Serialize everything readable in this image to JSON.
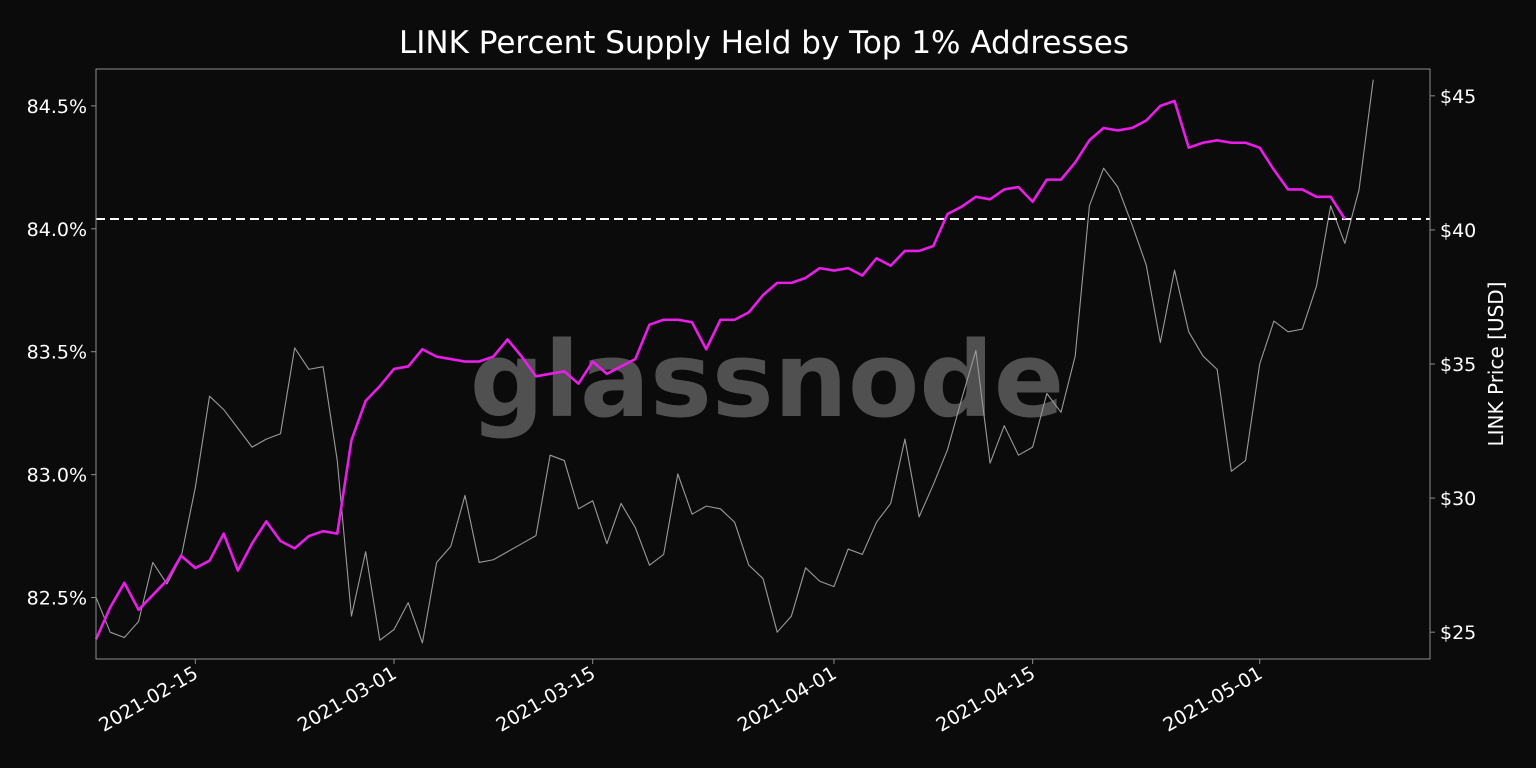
{
  "chart_data": {
    "type": "line",
    "title": "LINK Percent Supply Held by Top 1% Addresses",
    "watermark": "glassnode",
    "ylabel_left": "",
    "ylabel_right": "LINK Price [USD]",
    "xlim": [
      "2021-02-08",
      "2021-05-13"
    ],
    "ylim_left": [
      82.25,
      84.65
    ],
    "ylim_right": [
      24,
      46
    ],
    "x_ticks": [
      "2021-02-15",
      "2021-03-01",
      "2021-03-15",
      "2021-04-01",
      "2021-04-15",
      "2021-05-01"
    ],
    "y_ticks_left": [
      "82.5%",
      "83.0%",
      "83.5%",
      "84.0%",
      "84.5%"
    ],
    "y_tick_values_left": [
      82.5,
      83.0,
      83.5,
      84.0,
      84.5
    ],
    "y_ticks_right": [
      "$25",
      "$30",
      "$35",
      "$40",
      "$45"
    ],
    "y_tick_values_right": [
      25,
      30,
      35,
      40,
      45
    ],
    "reference_line": {
      "axis": "left",
      "value": 84.04,
      "style": "dashed",
      "color": "#ffffff"
    },
    "colors": {
      "supply": "#e81ee8",
      "price": "#9a9a9a",
      "background": "#0b0b0b",
      "frame": "#8c8c8c"
    },
    "start_date": "2021-02-08",
    "series": [
      {
        "name": "LINK Percent Supply Held by Top 1% Addresses",
        "axis": "left",
        "values": [
          82.33,
          82.46,
          82.56,
          82.45,
          82.51,
          82.57,
          82.67,
          82.62,
          82.65,
          82.76,
          82.61,
          82.72,
          82.81,
          82.73,
          82.7,
          82.75,
          82.77,
          82.76,
          83.14,
          83.3,
          83.36,
          83.43,
          83.44,
          83.51,
          83.48,
          83.47,
          83.46,
          83.46,
          83.48,
          83.55,
          83.48,
          83.4,
          83.41,
          83.42,
          83.37,
          83.46,
          83.41,
          83.44,
          83.47,
          83.61,
          83.63,
          83.63,
          83.62,
          83.51,
          83.63,
          83.63,
          83.66,
          83.73,
          83.78,
          83.78,
          83.8,
          83.84,
          83.83,
          83.84,
          83.81,
          83.88,
          83.85,
          83.91,
          83.91,
          83.93,
          84.06,
          84.09,
          84.13,
          84.12,
          84.16,
          84.17,
          84.11,
          84.2,
          84.2,
          84.27,
          84.36,
          84.41,
          84.4,
          84.41,
          84.44,
          84.5,
          84.52,
          84.33,
          84.35,
          84.36,
          84.35,
          84.35,
          84.33,
          84.24,
          84.16,
          84.16,
          84.13,
          84.13,
          84.04
        ]
      },
      {
        "name": "LINK Price [USD]",
        "axis": "right",
        "values": [
          26.3,
          25.0,
          24.8,
          25.4,
          27.6,
          26.8,
          27.8,
          30.4,
          33.8,
          33.3,
          32.6,
          31.9,
          32.2,
          32.4,
          35.6,
          34.8,
          34.9,
          31.4,
          25.6,
          28.0,
          24.7,
          25.1,
          26.1,
          24.6,
          27.6,
          28.2,
          30.1,
          27.6,
          27.7,
          28.0,
          28.3,
          28.6,
          31.6,
          31.4,
          29.6,
          29.9,
          28.3,
          29.8,
          28.9,
          27.5,
          27.9,
          30.9,
          29.4,
          29.7,
          29.6,
          29.1,
          27.5,
          27.0,
          25.0,
          25.6,
          27.4,
          26.9,
          26.7,
          28.1,
          27.9,
          29.1,
          29.8,
          32.2,
          29.3,
          30.5,
          31.8,
          33.7,
          35.5,
          31.3,
          32.7,
          31.6,
          31.9,
          33.9,
          33.2,
          35.3,
          40.9,
          42.3,
          41.6,
          40.2,
          38.7,
          35.8,
          38.5,
          36.2,
          35.3,
          34.8,
          31.0,
          31.4,
          35.0,
          36.6,
          36.2,
          36.3,
          37.9,
          40.9,
          39.5,
          41.5,
          45.6
        ]
      }
    ]
  }
}
